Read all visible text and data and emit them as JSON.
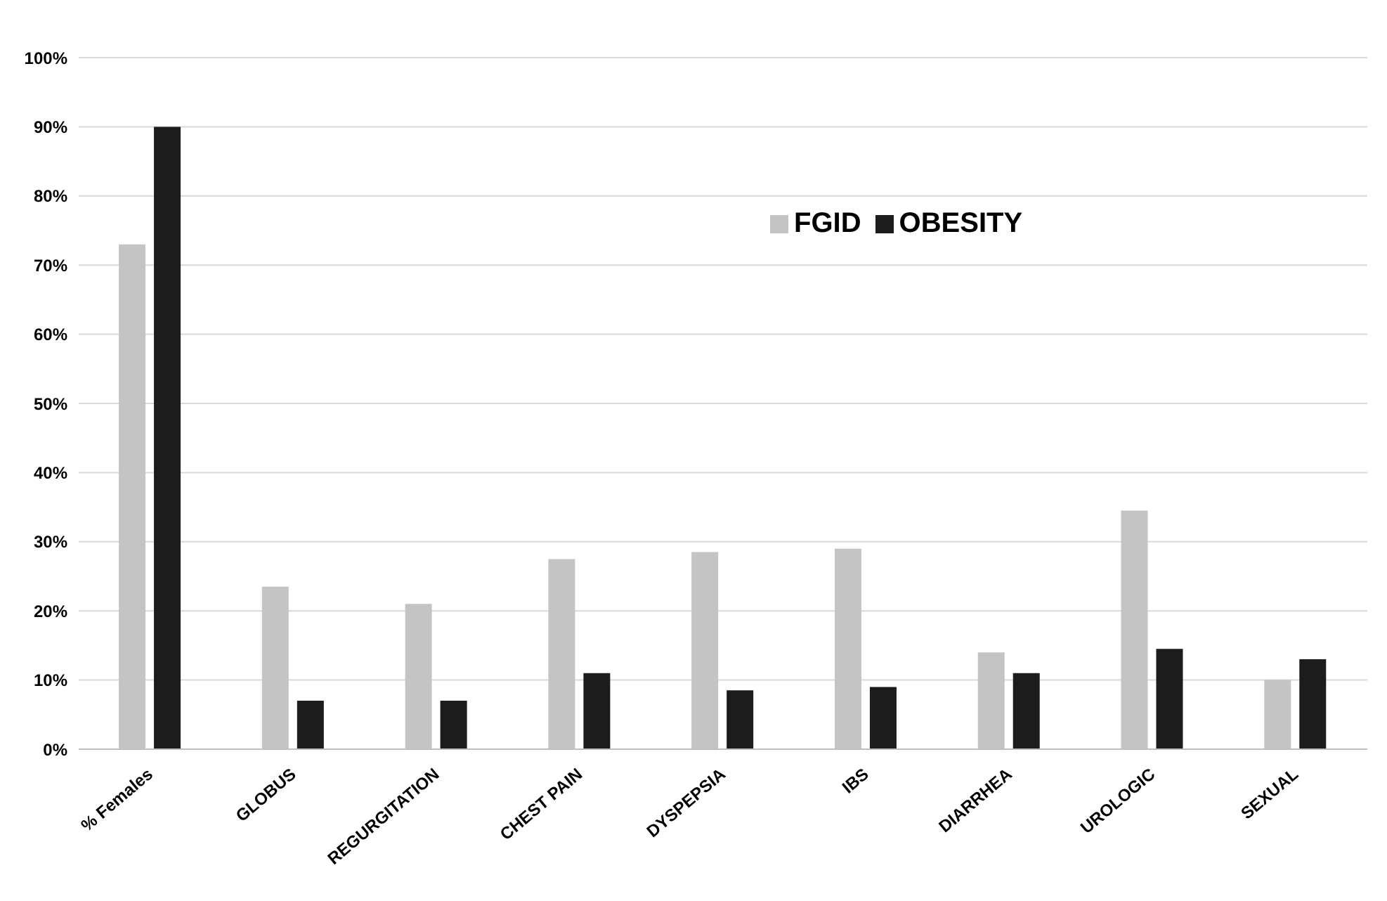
{
  "chart_data": {
    "type": "bar",
    "categories": [
      "% Females",
      "GLOBUS",
      "REGURGITATION",
      "CHEST PAIN",
      "DYSPEPSIA",
      "IBS",
      "DIARRHEA",
      "UROLOGIC",
      "SEXUAL"
    ],
    "series": [
      {
        "name": "FGID",
        "color": "#c4c4c4",
        "values": [
          73,
          23.5,
          21,
          27.5,
          28.5,
          29,
          14,
          34.5,
          10
        ]
      },
      {
        "name": "OBESITY",
        "color": "#1c1c1c",
        "values": [
          90,
          7,
          7,
          11,
          8.5,
          9,
          11,
          14.5,
          13
        ]
      }
    ],
    "ylim": [
      0,
      100
    ],
    "yticks": [
      {
        "value": 0,
        "label": "0%"
      },
      {
        "value": 10,
        "label": "10%"
      },
      {
        "value": 20,
        "label": "20%"
      },
      {
        "value": 30,
        "label": "30%"
      },
      {
        "value": 40,
        "label": "40%"
      },
      {
        "value": 50,
        "label": "50%"
      },
      {
        "value": 60,
        "label": "60%"
      },
      {
        "value": 70,
        "label": "70%"
      },
      {
        "value": 80,
        "label": "80%"
      },
      {
        "value": 90,
        "label": "90%"
      },
      {
        "value": 100,
        "label": "100%"
      }
    ],
    "grid": "y",
    "legend": "top right"
  }
}
